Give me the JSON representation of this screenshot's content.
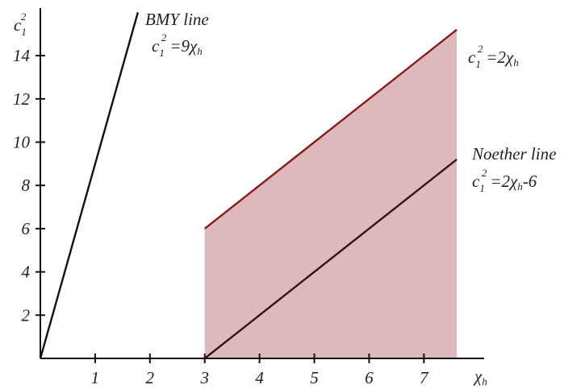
{
  "chart_data": {
    "type": "line",
    "title": "",
    "xlabel": "χ",
    "xlabel_sub": "h",
    "ylabel": "c",
    "ylabel_sup": "2",
    "ylabel_sub": "1",
    "xlim": [
      0,
      8.1
    ],
    "ylim": [
      0,
      16.2
    ],
    "x_ticks": [
      1,
      2,
      3,
      4,
      5,
      6,
      7
    ],
    "y_ticks": [
      2,
      4,
      6,
      8,
      10,
      12,
      14
    ],
    "grid": false,
    "series": [
      {
        "name": "BMY line",
        "x": [
          0,
          1.78
        ],
        "y": [
          0,
          16.0
        ],
        "color": "#111111"
      },
      {
        "name": "",
        "x": [
          3,
          7.6
        ],
        "y": [
          6,
          15.2
        ],
        "color": "#8b1a1a"
      },
      {
        "name": "Noether line",
        "x": [
          3,
          7.6
        ],
        "y": [
          0,
          9.2
        ],
        "color": "#3a0f0f"
      }
    ],
    "shaded_region": {
      "x": [
        3,
        7.6
      ],
      "lower": [
        0,
        0
      ],
      "upper": [
        6,
        15.2
      ],
      "color": "#deb9bb"
    },
    "annotations": [
      {
        "title": "BMY line",
        "eq_base": "c",
        "eq_sub": "1",
        "eq_sup": "2",
        "eq_rhs": "=9χ",
        "eq_rhs_sub": "h",
        "eq_tail": ""
      },
      {
        "title": "",
        "eq_base": "c",
        "eq_sub": "1",
        "eq_sup": "2",
        "eq_rhs": "=2χ",
        "eq_rhs_sub": "h",
        "eq_tail": ""
      },
      {
        "title": "Noether line",
        "eq_base": "c",
        "eq_sub": "1",
        "eq_sup": "2",
        "eq_rhs": "=2χ",
        "eq_rhs_sub": "h",
        "eq_tail": "-6"
      }
    ]
  }
}
